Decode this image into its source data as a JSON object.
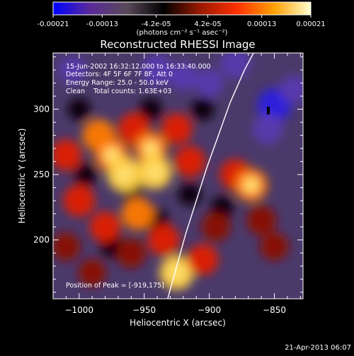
{
  "chart_data": {
    "type": "heatmap",
    "title": "Reconstructed RHESSI Image",
    "xlabel": "Heliocentric X (arcsec)",
    "ylabel": "Heliocentric Y (arcsec)",
    "xlim": [
      -1020,
      -828
    ],
    "ylim": [
      155,
      343
    ],
    "x_ticks": [
      -1000,
      -950,
      -900,
      -850
    ],
    "x_tick_labels": [
      "−1000",
      "−950",
      "−900",
      "−850"
    ],
    "y_ticks": [
      200,
      250,
      300
    ],
    "y_tick_labels": [
      "200",
      "250",
      "300"
    ],
    "colorbar": {
      "min": -0.00021,
      "max": 0.00021,
      "ticks": [
        -0.00021,
        -0.00013,
        -4.2e-05,
        4.2e-05,
        0.00013,
        0.00021
      ],
      "tick_labels": [
        "-0.00021",
        "-0.00013",
        "-4.2e-05",
        "4.2e-05",
        "0.00013",
        "0.00021"
      ],
      "units": "(photons cm⁻² s⁻¹ asec⁻²)",
      "colors": [
        "#0000ff",
        "#5a2a9a",
        "#5a4a5a",
        "#000000",
        "#9a1a00",
        "#ff3000",
        "#ffa000",
        "#ffffd0"
      ]
    },
    "annotations": [
      "15-Jun-2002 16:32:12.000 to 16:33:40.000",
      "Detectors: 4F 5F 6F 7F 8F, Att 0",
      "Energy Range: 25.0 - 50.0 keV",
      "Clean    Total counts: 1.63E+03"
    ],
    "peak_label": "Position of Peak = [-919,175]",
    "peak": [
      -919,
      175
    ],
    "limb_curve": [
      [
        -932,
        155
      ],
      [
        -925,
        180
      ],
      [
        -918,
        205
      ],
      [
        -910,
        230
      ],
      [
        -902,
        255
      ],
      [
        -893,
        280
      ],
      [
        -884,
        305
      ],
      [
        -873,
        330
      ],
      [
        -866,
        343
      ]
    ],
    "blobs": [
      {
        "x": -1010,
        "y": 265,
        "s": 0.7
      },
      {
        "x": -985,
        "y": 280,
        "s": 0.8
      },
      {
        "x": -975,
        "y": 265,
        "s": 0.9
      },
      {
        "x": -965,
        "y": 250,
        "s": 1.0
      },
      {
        "x": -958,
        "y": 285,
        "s": 0.75
      },
      {
        "x": -945,
        "y": 270,
        "s": 0.85
      },
      {
        "x": -942,
        "y": 252,
        "s": 0.95
      },
      {
        "x": -925,
        "y": 285,
        "s": 0.7
      },
      {
        "x": -915,
        "y": 260,
        "s": 0.7
      },
      {
        "x": -1000,
        "y": 230,
        "s": 0.75
      },
      {
        "x": -980,
        "y": 210,
        "s": 0.7
      },
      {
        "x": -955,
        "y": 220,
        "s": 0.8
      },
      {
        "x": -935,
        "y": 200,
        "s": 0.75
      },
      {
        "x": -960,
        "y": 190,
        "s": 0.6
      },
      {
        "x": -925,
        "y": 175,
        "s": 0.95
      },
      {
        "x": -905,
        "y": 185,
        "s": 0.7
      },
      {
        "x": -895,
        "y": 210,
        "s": 0.55
      },
      {
        "x": -880,
        "y": 250,
        "s": 0.7
      },
      {
        "x": -868,
        "y": 242,
        "s": 0.85
      },
      {
        "x": -860,
        "y": 215,
        "s": 0.6
      },
      {
        "x": -850,
        "y": 195,
        "s": 0.5
      },
      {
        "x": -1010,
        "y": 195,
        "s": 0.5
      },
      {
        "x": -990,
        "y": 175,
        "s": 0.45
      }
    ],
    "cool_blobs": [
      {
        "x": -940,
        "y": 330,
        "s": 0.8
      },
      {
        "x": -920,
        "y": 325,
        "s": 0.6
      },
      {
        "x": -900,
        "y": 320,
        "s": 0.6
      },
      {
        "x": -880,
        "y": 335,
        "s": 0.7
      },
      {
        "x": -850,
        "y": 303,
        "s": 1.0
      },
      {
        "x": -855,
        "y": 285,
        "s": 0.75
      },
      {
        "x": -835,
        "y": 315,
        "s": 0.6
      },
      {
        "x": -1005,
        "y": 330,
        "s": 0.5
      }
    ]
  },
  "timestamp": "21-Apr-2013 06:07"
}
